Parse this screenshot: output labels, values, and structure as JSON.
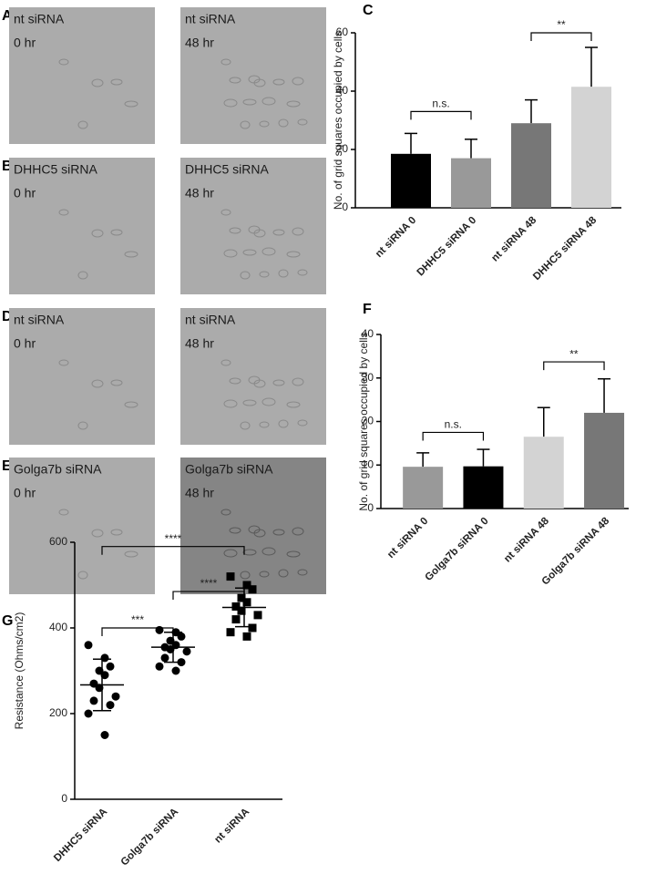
{
  "panels": [
    {
      "letter": "A",
      "images": [
        {
          "lines": [
            "nt siRNA",
            "0 hr"
          ]
        },
        {
          "lines": [
            "nt siRNA",
            "48 hr"
          ]
        }
      ]
    },
    {
      "letter": "B",
      "images": [
        {
          "lines": [
            "DHHC5 siRNA",
            "0 hr"
          ]
        },
        {
          "lines": [
            "DHHC5 siRNA",
            "48 hr"
          ]
        }
      ]
    },
    {
      "letter": "D",
      "images": [
        {
          "lines": [
            "nt siRNA",
            "0 hr"
          ]
        },
        {
          "lines": [
            "nt siRNA",
            "48 hr"
          ]
        }
      ]
    },
    {
      "letter": "E",
      "images": [
        {
          "lines": [
            "Golga7b siRNA",
            "0 hr"
          ]
        },
        {
          "lines": [
            "Golga7b siRNA",
            "48 hr"
          ]
        }
      ]
    }
  ],
  "chart_data": [
    {
      "type": "bar",
      "letter": "C",
      "ylabel": "No. of grid squares occupied by cells",
      "categories": [
        "nt siRNA 0",
        "DHHC5 siRNA 0",
        "nt siRNA 48",
        "DHHC5 siRNA 48"
      ],
      "values": [
        18.5,
        17,
        29,
        41.5
      ],
      "errors": [
        7,
        6.5,
        8,
        13.5
      ],
      "colors": [
        "#000000",
        "#999999",
        "#777777",
        "#d3d3d3"
      ],
      "ylim": [
        0,
        60
      ],
      "yticks": [
        0,
        20,
        40,
        60
      ],
      "annotations": [
        {
          "text": "n.s.",
          "from": 0,
          "to": 1,
          "y": 33
        },
        {
          "text": "**",
          "from": 2,
          "to": 3,
          "y": 60
        }
      ]
    },
    {
      "type": "bar",
      "letter": "F",
      "ylabel": "No. of grid squares occupied by cells",
      "categories": [
        "nt siRNA 0",
        "Golga7b siRNA 0",
        "nt siRNA 48",
        "Golga7b siRNA 48"
      ],
      "values": [
        9.6,
        9.7,
        16.5,
        22
      ],
      "errors": [
        3.2,
        3.9,
        6.7,
        7.8
      ],
      "colors": [
        "#999999",
        "#000000",
        "#d3d3d3",
        "#777777"
      ],
      "ylim": [
        0,
        40
      ],
      "yticks": [
        0,
        10,
        20,
        30,
        40
      ],
      "annotations": [
        {
          "text": "n.s.",
          "from": 0,
          "to": 1,
          "y": 17.5
        },
        {
          "text": "**",
          "from": 2,
          "to": 3,
          "y": 33.7
        }
      ]
    },
    {
      "type": "dotplot",
      "letter": "G",
      "ylabel": "Resistance (Ohms/cm2)",
      "categories": [
        "DHHC5 siRNA",
        "Golga7b siRNA",
        "nt siRNA"
      ],
      "groups": [
        {
          "marker": "circle",
          "mean": 267,
          "sd": 60,
          "values": [
            360,
            330,
            310,
            300,
            290,
            270,
            260,
            240,
            230,
            220,
            200,
            150
          ]
        },
        {
          "marker": "circle",
          "mean": 355,
          "sd": 35,
          "values": [
            395,
            390,
            380,
            370,
            360,
            355,
            350,
            345,
            330,
            320,
            310,
            300
          ]
        },
        {
          "marker": "square",
          "mean": 448,
          "sd": 45,
          "values": [
            520,
            500,
            490,
            470,
            460,
            450,
            440,
            430,
            420,
            400,
            390,
            380
          ]
        }
      ],
      "ylim": [
        0,
        600
      ],
      "yticks": [
        0,
        200,
        400,
        600
      ],
      "annotations": [
        {
          "text": "***",
          "from": 0,
          "to": 1,
          "y": 400
        },
        {
          "text": "****",
          "from": 1,
          "to": 2,
          "y": 485
        },
        {
          "text": "****",
          "from": 0,
          "to": 2,
          "y": 590
        }
      ]
    }
  ]
}
